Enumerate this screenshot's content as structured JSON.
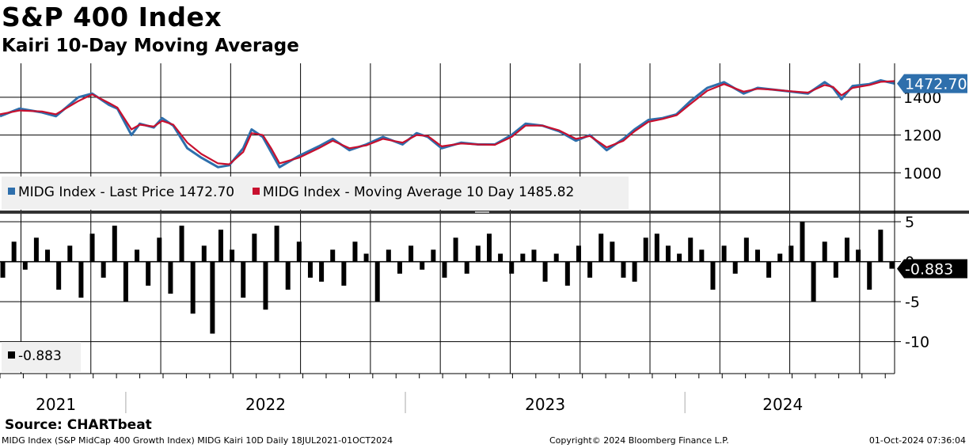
{
  "header": {
    "title": "S&P 400 Index",
    "subtitle": "Kairi 10-Day Moving Average"
  },
  "footer": {
    "source": "Source: CHARTbeat",
    "description": "MIDG Index (S&P MidCap 400 Growth Index) MIDG Kairi 10D  Daily 18JUL2021-01OCT2024",
    "copyright": "Copyright© 2024 Bloomberg Finance L.P.",
    "timestamp": "01-Oct-2024 07:36:04"
  },
  "colors": {
    "price": "#2e6fac",
    "ma": "#c8102e",
    "kairi": "#000000",
    "label_bg": "#2e6fac"
  },
  "chart_data": [
    {
      "type": "line",
      "panel": "upper",
      "ylim": [
        800,
        1580
      ],
      "yticks": [
        1000,
        1200,
        1400
      ],
      "ytick_labels": [
        "1000",
        "1200",
        "1400"
      ],
      "last_value_label": "1472.70",
      "legend": {
        "price": "MIDG Index - Last Price 1472.70",
        "ma": "MIDG Index - Moving Average 10 Day 1485.82"
      },
      "x_start": 2021.55,
      "x_end": 2024.75,
      "series": [
        {
          "name": "MIDG Index - Last Price",
          "x": [
            2021.55,
            2021.62,
            2021.7,
            2021.75,
            2021.83,
            2021.88,
            2021.94,
            2021.97,
            2022.02,
            2022.05,
            2022.1,
            2022.13,
            2022.17,
            2022.22,
            2022.27,
            2022.33,
            2022.37,
            2022.42,
            2022.45,
            2022.49,
            2022.52,
            2022.55,
            2022.62,
            2022.69,
            2022.74,
            2022.8,
            2022.86,
            2022.92,
            2022.99,
            2023.04,
            2023.08,
            2023.13,
            2023.2,
            2023.26,
            2023.32,
            2023.38,
            2023.43,
            2023.49,
            2023.55,
            2023.61,
            2023.66,
            2023.72,
            2023.78,
            2023.82,
            2023.87,
            2023.92,
            2023.97,
            2024.02,
            2024.08,
            2024.14,
            2024.21,
            2024.26,
            2024.32,
            2024.38,
            2024.44,
            2024.5,
            2024.53,
            2024.56,
            2024.6,
            2024.66,
            2024.7,
            2024.75
          ],
          "y": [
            1300,
            1340,
            1320,
            1300,
            1400,
            1420,
            1360,
            1340,
            1200,
            1260,
            1240,
            1290,
            1250,
            1130,
            1080,
            1030,
            1040,
            1130,
            1230,
            1190,
            1110,
            1030,
            1090,
            1140,
            1180,
            1120,
            1150,
            1190,
            1150,
            1210,
            1190,
            1130,
            1160,
            1150,
            1150,
            1200,
            1260,
            1250,
            1220,
            1170,
            1200,
            1120,
            1180,
            1230,
            1280,
            1290,
            1310,
            1380,
            1450,
            1480,
            1420,
            1450,
            1440,
            1430,
            1420,
            1480,
            1450,
            1390,
            1460,
            1470,
            1490,
            1472.7
          ]
        },
        {
          "name": "MIDG Index - Moving Average 10 Day",
          "x": [
            2021.55,
            2021.62,
            2021.7,
            2021.75,
            2021.83,
            2021.88,
            2021.94,
            2021.97,
            2022.02,
            2022.05,
            2022.1,
            2022.13,
            2022.17,
            2022.22,
            2022.27,
            2022.33,
            2022.37,
            2022.42,
            2022.45,
            2022.49,
            2022.52,
            2022.55,
            2022.62,
            2022.69,
            2022.74,
            2022.8,
            2022.86,
            2022.92,
            2022.99,
            2023.04,
            2023.08,
            2023.13,
            2023.2,
            2023.26,
            2023.32,
            2023.38,
            2023.43,
            2023.49,
            2023.55,
            2023.61,
            2023.66,
            2023.72,
            2023.78,
            2023.82,
            2023.87,
            2023.92,
            2023.97,
            2024.02,
            2024.08,
            2024.14,
            2024.21,
            2024.26,
            2024.32,
            2024.38,
            2024.44,
            2024.5,
            2024.53,
            2024.56,
            2024.6,
            2024.66,
            2024.7,
            2024.75
          ],
          "y": [
            1310,
            1330,
            1325,
            1310,
            1380,
            1415,
            1370,
            1345,
            1230,
            1255,
            1245,
            1275,
            1255,
            1160,
            1100,
            1050,
            1045,
            1110,
            1210,
            1200,
            1130,
            1050,
            1080,
            1130,
            1170,
            1130,
            1145,
            1180,
            1160,
            1200,
            1195,
            1140,
            1155,
            1150,
            1148,
            1190,
            1250,
            1250,
            1225,
            1180,
            1195,
            1135,
            1170,
            1220,
            1270,
            1285,
            1305,
            1365,
            1435,
            1470,
            1430,
            1445,
            1440,
            1432,
            1425,
            1465,
            1455,
            1410,
            1450,
            1465,
            1482,
            1485.82
          ]
        }
      ]
    },
    {
      "type": "bar",
      "panel": "lower",
      "ylim": [
        -14,
        6
      ],
      "yticks": [
        5,
        0,
        -5,
        -10
      ],
      "ytick_labels": [
        "5",
        "0",
        "-5",
        "-10"
      ],
      "last_value_label": "-0.883",
      "legend": {
        "kairi": "-0.883"
      },
      "x_start": 2021.55,
      "x_end": 2024.75,
      "x": [
        2021.56,
        2021.6,
        2021.64,
        2021.68,
        2021.72,
        2021.76,
        2021.8,
        2021.84,
        2021.88,
        2021.92,
        2021.96,
        2022.0,
        2022.04,
        2022.08,
        2022.12,
        2022.16,
        2022.2,
        2022.24,
        2022.28,
        2022.31,
        2022.34,
        2022.38,
        2022.42,
        2022.46,
        2022.5,
        2022.54,
        2022.58,
        2022.62,
        2022.66,
        2022.7,
        2022.74,
        2022.78,
        2022.82,
        2022.86,
        2022.9,
        2022.94,
        2022.98,
        2023.02,
        2023.06,
        2023.1,
        2023.14,
        2023.18,
        2023.22,
        2023.26,
        2023.3,
        2023.34,
        2023.38,
        2023.42,
        2023.46,
        2023.5,
        2023.54,
        2023.58,
        2023.62,
        2023.66,
        2023.7,
        2023.74,
        2023.78,
        2023.82,
        2023.86,
        2023.9,
        2023.94,
        2023.98,
        2024.02,
        2024.06,
        2024.1,
        2024.14,
        2024.18,
        2024.22,
        2024.26,
        2024.3,
        2024.34,
        2024.38,
        2024.42,
        2024.46,
        2024.5,
        2024.54,
        2024.58,
        2024.62,
        2024.66,
        2024.7,
        2024.74
      ],
      "values": [
        -2.0,
        2.5,
        -1.0,
        3.0,
        1.5,
        -3.5,
        2.0,
        -4.5,
        3.5,
        -2.0,
        4.5,
        -5.0,
        1.5,
        -3.0,
        3.0,
        -4.0,
        4.5,
        -6.5,
        2.0,
        -9.0,
        4.0,
        1.5,
        -4.5,
        3.5,
        -6.0,
        4.5,
        -3.5,
        2.5,
        -2.0,
        -2.5,
        1.5,
        -3.0,
        2.5,
        1.0,
        -5.0,
        1.5,
        -1.5,
        2.0,
        -1.0,
        1.5,
        -2.0,
        3.0,
        -1.5,
        2.0,
        3.5,
        1.0,
        -1.5,
        1.0,
        1.5,
        -2.5,
        1.0,
        -3.0,
        2.0,
        -2.0,
        3.5,
        2.5,
        -2.0,
        -2.5,
        3.0,
        3.5,
        2.0,
        1.0,
        3.0,
        1.5,
        -3.5,
        2.0,
        -1.5,
        3.0,
        1.5,
        -2.0,
        1.0,
        2.0,
        5.0,
        -5.0,
        2.5,
        -2.0,
        3.0,
        1.5,
        -3.5,
        4.0,
        -0.883
      ]
    }
  ],
  "x_axis": {
    "year_labels": [
      "2021",
      "2022",
      "2023",
      "2024"
    ],
    "year_values": [
      2021.75,
      2022.5,
      2023.5,
      2024.35
    ],
    "separators": [
      2022.0,
      2023.0,
      2024.0
    ]
  }
}
